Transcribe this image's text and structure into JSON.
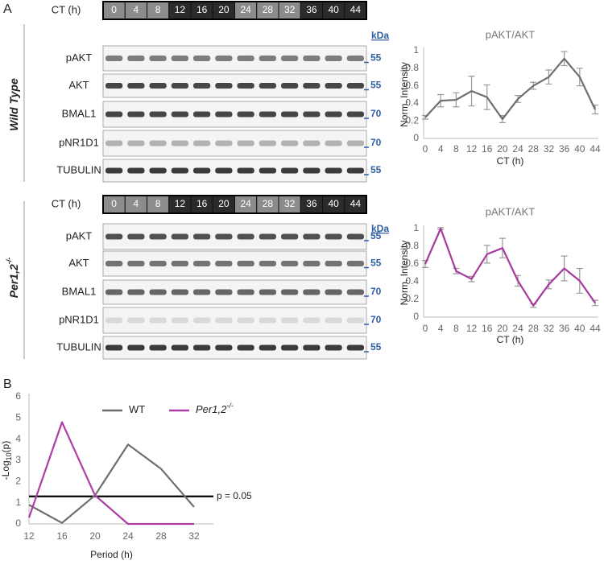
{
  "panel_labels": [
    "A",
    "B"
  ],
  "blots": [
    {
      "genotype": "Wild Type",
      "ct_label": "CT (h)",
      "ct": [
        0,
        4,
        8,
        12,
        16,
        20,
        24,
        28,
        32,
        36,
        40,
        44
      ],
      "kda_label": "kDa",
      "rows": [
        {
          "label": "pAKT",
          "kda": 55
        },
        {
          "label": "AKT",
          "kda": 55
        },
        {
          "label": "BMAL1",
          "kda": 70
        },
        {
          "label": "pNR1D1",
          "kda": 70
        },
        {
          "label": "TUBULIN",
          "kda": 55
        }
      ]
    },
    {
      "genotype": "Per1,2",
      "genotype_sup": "-/-",
      "ct_label": "CT (h)",
      "ct": [
        0,
        4,
        8,
        12,
        16,
        20,
        24,
        28,
        32,
        36,
        40,
        44
      ],
      "kda_label": "kDa",
      "rows": [
        {
          "label": "pAKT",
          "kda": 55
        },
        {
          "label": "AKT",
          "kda": 55
        },
        {
          "label": "BMAL1",
          "kda": 70
        },
        {
          "label": "pNR1D1",
          "kda": 70
        },
        {
          "label": "TUBULIN",
          "kda": 55
        }
      ]
    }
  ],
  "chart_data": [
    {
      "type": "line",
      "title": "pAKT/AKT",
      "x_label": "CT (h)",
      "y_label": "Norm. Intensity",
      "categories": [
        0,
        4,
        8,
        12,
        16,
        20,
        24,
        28,
        32,
        36,
        40,
        44
      ],
      "series": [
        {
          "color": "#6e6e6e",
          "values": [
            0.24,
            0.43,
            0.44,
            0.54,
            0.47,
            0.22,
            0.45,
            0.6,
            0.7,
            0.91,
            0.7,
            0.33
          ],
          "errors": [
            0.02,
            0.07,
            0.08,
            0.17,
            0.14,
            0.04,
            0.04,
            0.04,
            0.08,
            0.08,
            0.1,
            0.05
          ]
        }
      ],
      "ylim": [
        0,
        1
      ],
      "yticks": [
        0,
        0.2,
        0.4,
        0.6,
        0.8,
        1
      ]
    },
    {
      "type": "line",
      "title": "pAKT/AKT",
      "x_label": "CT (h)",
      "y_label": "Norm. Intensity",
      "categories": [
        0,
        4,
        8,
        12,
        16,
        20,
        24,
        28,
        32,
        36,
        40,
        44
      ],
      "series": [
        {
          "color": "#a8399e",
          "values": [
            0.6,
            1.0,
            0.52,
            0.43,
            0.71,
            0.78,
            0.41,
            0.13,
            0.37,
            0.55,
            0.41,
            0.16
          ],
          "errors": [
            0.04,
            0.01,
            0.03,
            0.03,
            0.1,
            0.11,
            0.06,
            0.02,
            0.05,
            0.14,
            0.14,
            0.03
          ]
        }
      ],
      "ylim": [
        0,
        1
      ],
      "yticks": [
        0,
        0.2,
        0.4,
        0.6,
        0.8,
        1
      ]
    },
    {
      "type": "line",
      "x_label": "Period (h)",
      "y_label_parts": [
        "-Log",
        "10",
        "(p)"
      ],
      "x": [
        12,
        16,
        20,
        24,
        28,
        32
      ],
      "series": [
        {
          "name": "WT",
          "color": "#6e6e6e",
          "values": [
            0.9,
            0.05,
            1.35,
            3.75,
            2.6,
            0.8
          ]
        },
        {
          "name": "Per1,2",
          "name_sup": "-/-",
          "color": "#b03ca6",
          "values": [
            0.3,
            4.8,
            1.35,
            0,
            0,
            0
          ]
        }
      ],
      "threshold": {
        "value": 1.3,
        "label": "p = 0.05"
      },
      "xlim": [
        12,
        32
      ],
      "xticks": [
        12,
        16,
        20,
        24,
        28,
        32
      ],
      "ylim": [
        0,
        6
      ],
      "yticks": [
        0,
        1,
        2,
        3,
        4,
        5,
        6
      ]
    }
  ]
}
